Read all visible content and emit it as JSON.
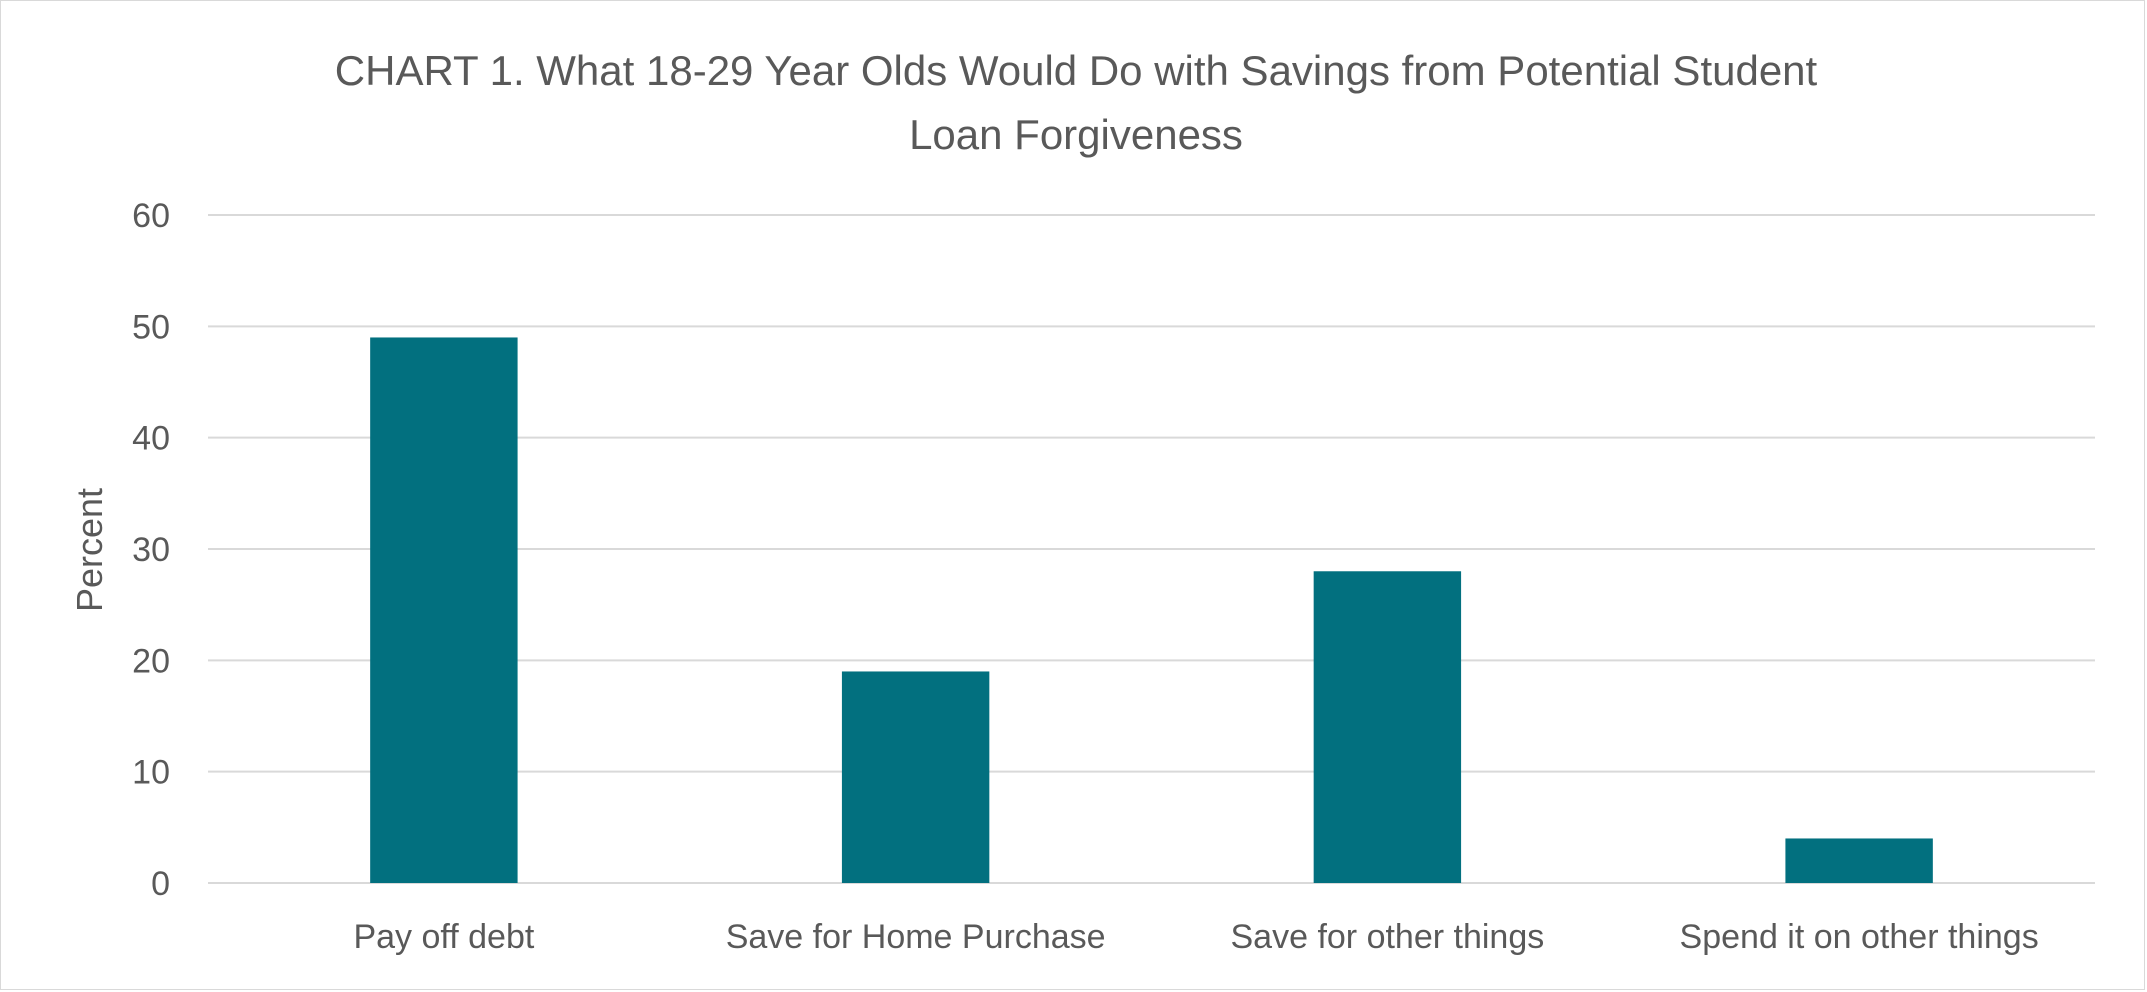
{
  "chart_data": {
    "type": "bar",
    "title": "CHART 1. What 18-29 Year Olds Would Do with Savings from Potential Student Loan Forgiveness",
    "title_lines": [
      "CHART 1. What 18-29 Year Olds Would Do with Savings from Potential Student",
      "Loan Forgiveness"
    ],
    "categories": [
      "Pay off debt",
      "Save for Home Purchase",
      "Save for other things",
      "Spend it on other things"
    ],
    "values": [
      49,
      19,
      28,
      4
    ],
    "xlabel": "",
    "ylabel": "Percent",
    "ylim": [
      0,
      60
    ],
    "yticks": [
      0,
      10,
      20,
      30,
      40,
      50,
      60
    ],
    "grid": true,
    "legend": "none",
    "bar_color": "#02707F",
    "grid_color": "#d9d9d9",
    "text_color": "#595959"
  }
}
